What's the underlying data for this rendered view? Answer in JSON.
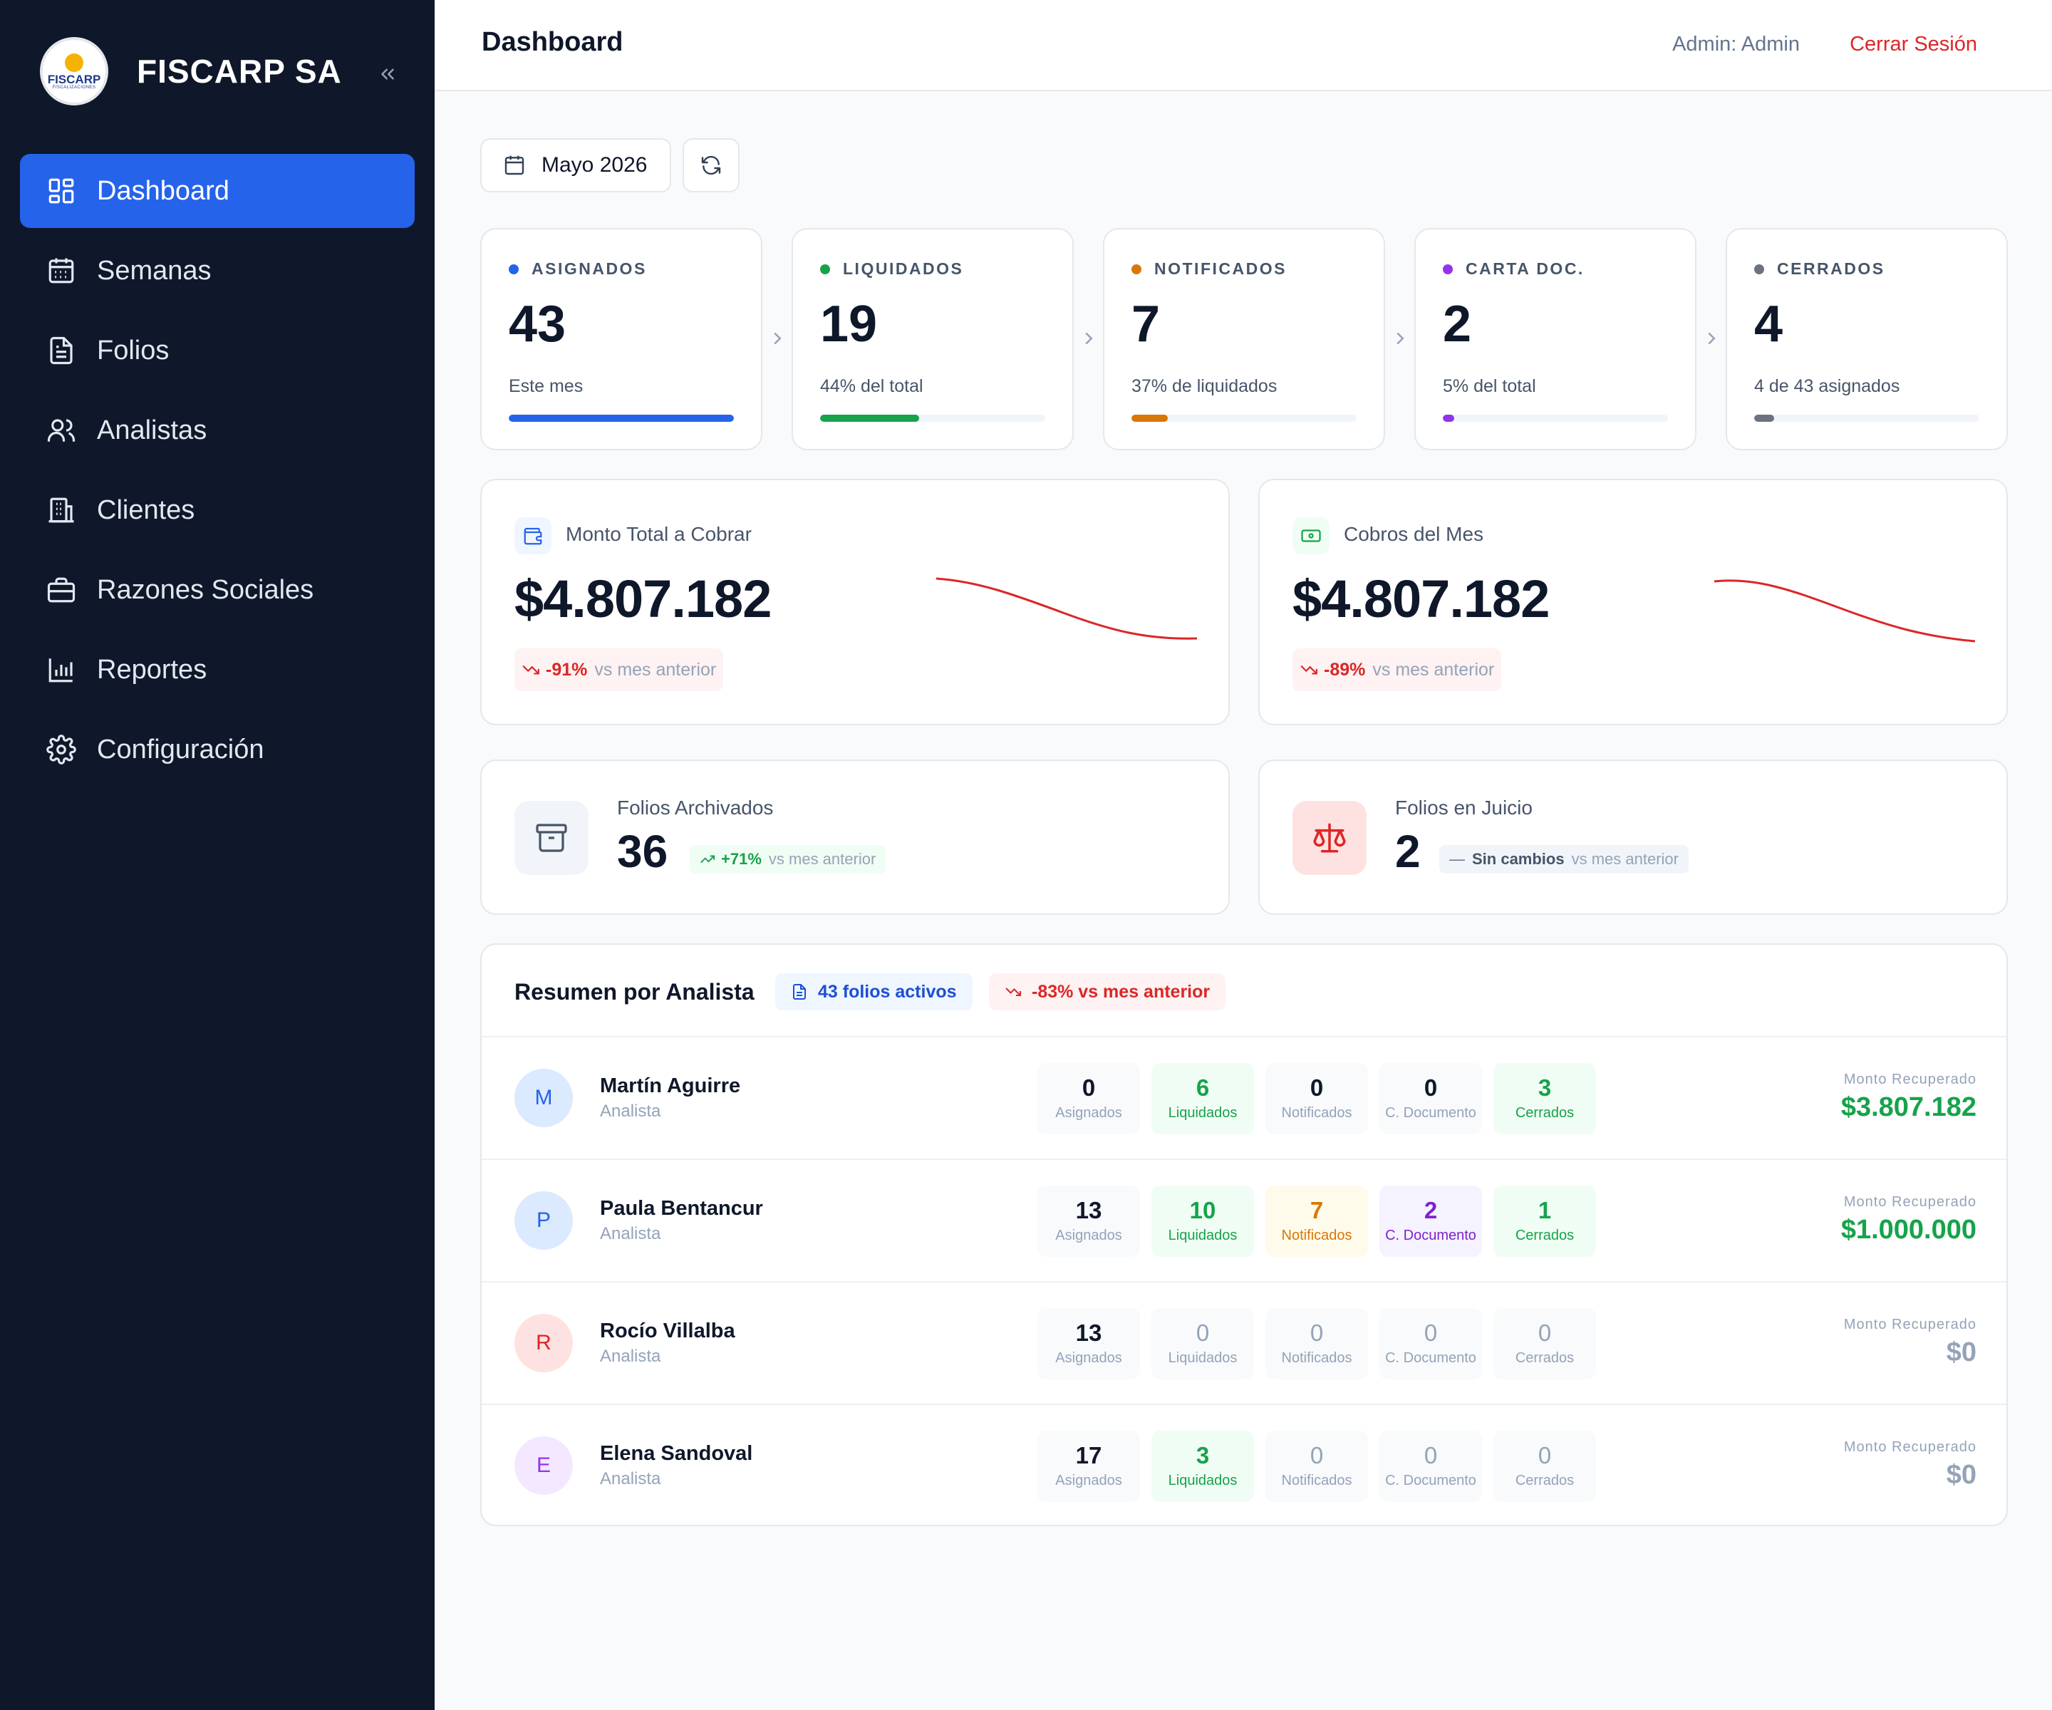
{
  "brand": {
    "name": "FISCARP SA",
    "logo_text": "FISCARP",
    "logo_sub": "FISCALIZACIONES"
  },
  "nav": [
    {
      "label": "Dashboard",
      "icon": "dashboard-icon",
      "active": true
    },
    {
      "label": "Semanas",
      "icon": "calendar-icon"
    },
    {
      "label": "Folios",
      "icon": "document-icon"
    },
    {
      "label": "Analistas",
      "icon": "users-icon"
    },
    {
      "label": "Clientes",
      "icon": "building-icon"
    },
    {
      "label": "Razones Sociales",
      "icon": "briefcase-icon"
    },
    {
      "label": "Reportes",
      "icon": "bar-chart-icon"
    },
    {
      "label": "Configuración",
      "icon": "gear-icon"
    }
  ],
  "header": {
    "title": "Dashboard",
    "user": "Admin: Admin",
    "logout": "Cerrar Sesión"
  },
  "toolbar": {
    "month": "Mayo 2026"
  },
  "stats": [
    {
      "label": "ASIGNADOS",
      "value": "43",
      "sub": "Este mes",
      "color": "#2563eb",
      "progress": 1.0
    },
    {
      "label": "LIQUIDADOS",
      "value": "19",
      "sub": "44% del total",
      "color": "#16a34a",
      "progress": 0.44
    },
    {
      "label": "NOTIFICADOS",
      "value": "7",
      "sub": "37% de liquidados",
      "color": "#d97706",
      "progress": 0.16
    },
    {
      "label": "CARTA DOC.",
      "value": "2",
      "sub": "5% del total",
      "color": "#9333ea",
      "progress": 0.05
    },
    {
      "label": "CERRADOS",
      "value": "4",
      "sub": "4 de 43 asignados",
      "color": "#6b7280",
      "progress": 0.09
    }
  ],
  "money": [
    {
      "label": "Monto Total a Cobrar",
      "amount": "$4.807.182",
      "delta": "-91%",
      "delta_text": "vs mes anterior",
      "icon": "wallet-icon"
    },
    {
      "label": "Cobros del Mes",
      "amount": "$4.807.182",
      "delta": "-89%",
      "delta_text": "vs mes anterior",
      "icon": "cash-icon"
    }
  ],
  "folios": [
    {
      "label": "Folios Archivados",
      "value": "36",
      "badge": "+71%",
      "badge_text": "vs mes anterior",
      "icon": "archive-icon"
    },
    {
      "label": "Folios en Juicio",
      "value": "2",
      "badge": "Sin cambios",
      "badge_text": "vs mes anterior",
      "icon": "scale-icon"
    }
  ],
  "summary": {
    "title": "Resumen por Analista",
    "active_pill": "43 folios activos",
    "delta_pill": "-83% vs mes anterior",
    "metric_labels": [
      "Asignados",
      "Liquidados",
      "Notificados",
      "C. Documento",
      "Cerrados"
    ],
    "recov_label": "Monto Recuperado",
    "analysts": [
      {
        "initial": "M",
        "name": "Martín Aguirre",
        "role": "Analista",
        "values": [
          "0",
          "6",
          "0",
          "0",
          "3"
        ],
        "recovered": "$3.807.182"
      },
      {
        "initial": "P",
        "name": "Paula Bentancur",
        "role": "Analista",
        "values": [
          "13",
          "10",
          "7",
          "2",
          "1"
        ],
        "recovered": "$1.000.000"
      },
      {
        "initial": "R",
        "name": "Rocío Villalba",
        "role": "Analista",
        "values": [
          "13",
          "0",
          "0",
          "0",
          "0"
        ],
        "recovered": "$0"
      },
      {
        "initial": "E",
        "name": "Elena Sandoval",
        "role": "Analista",
        "values": [
          "17",
          "3",
          "0",
          "0",
          "0"
        ],
        "recovered": "$0"
      }
    ]
  }
}
